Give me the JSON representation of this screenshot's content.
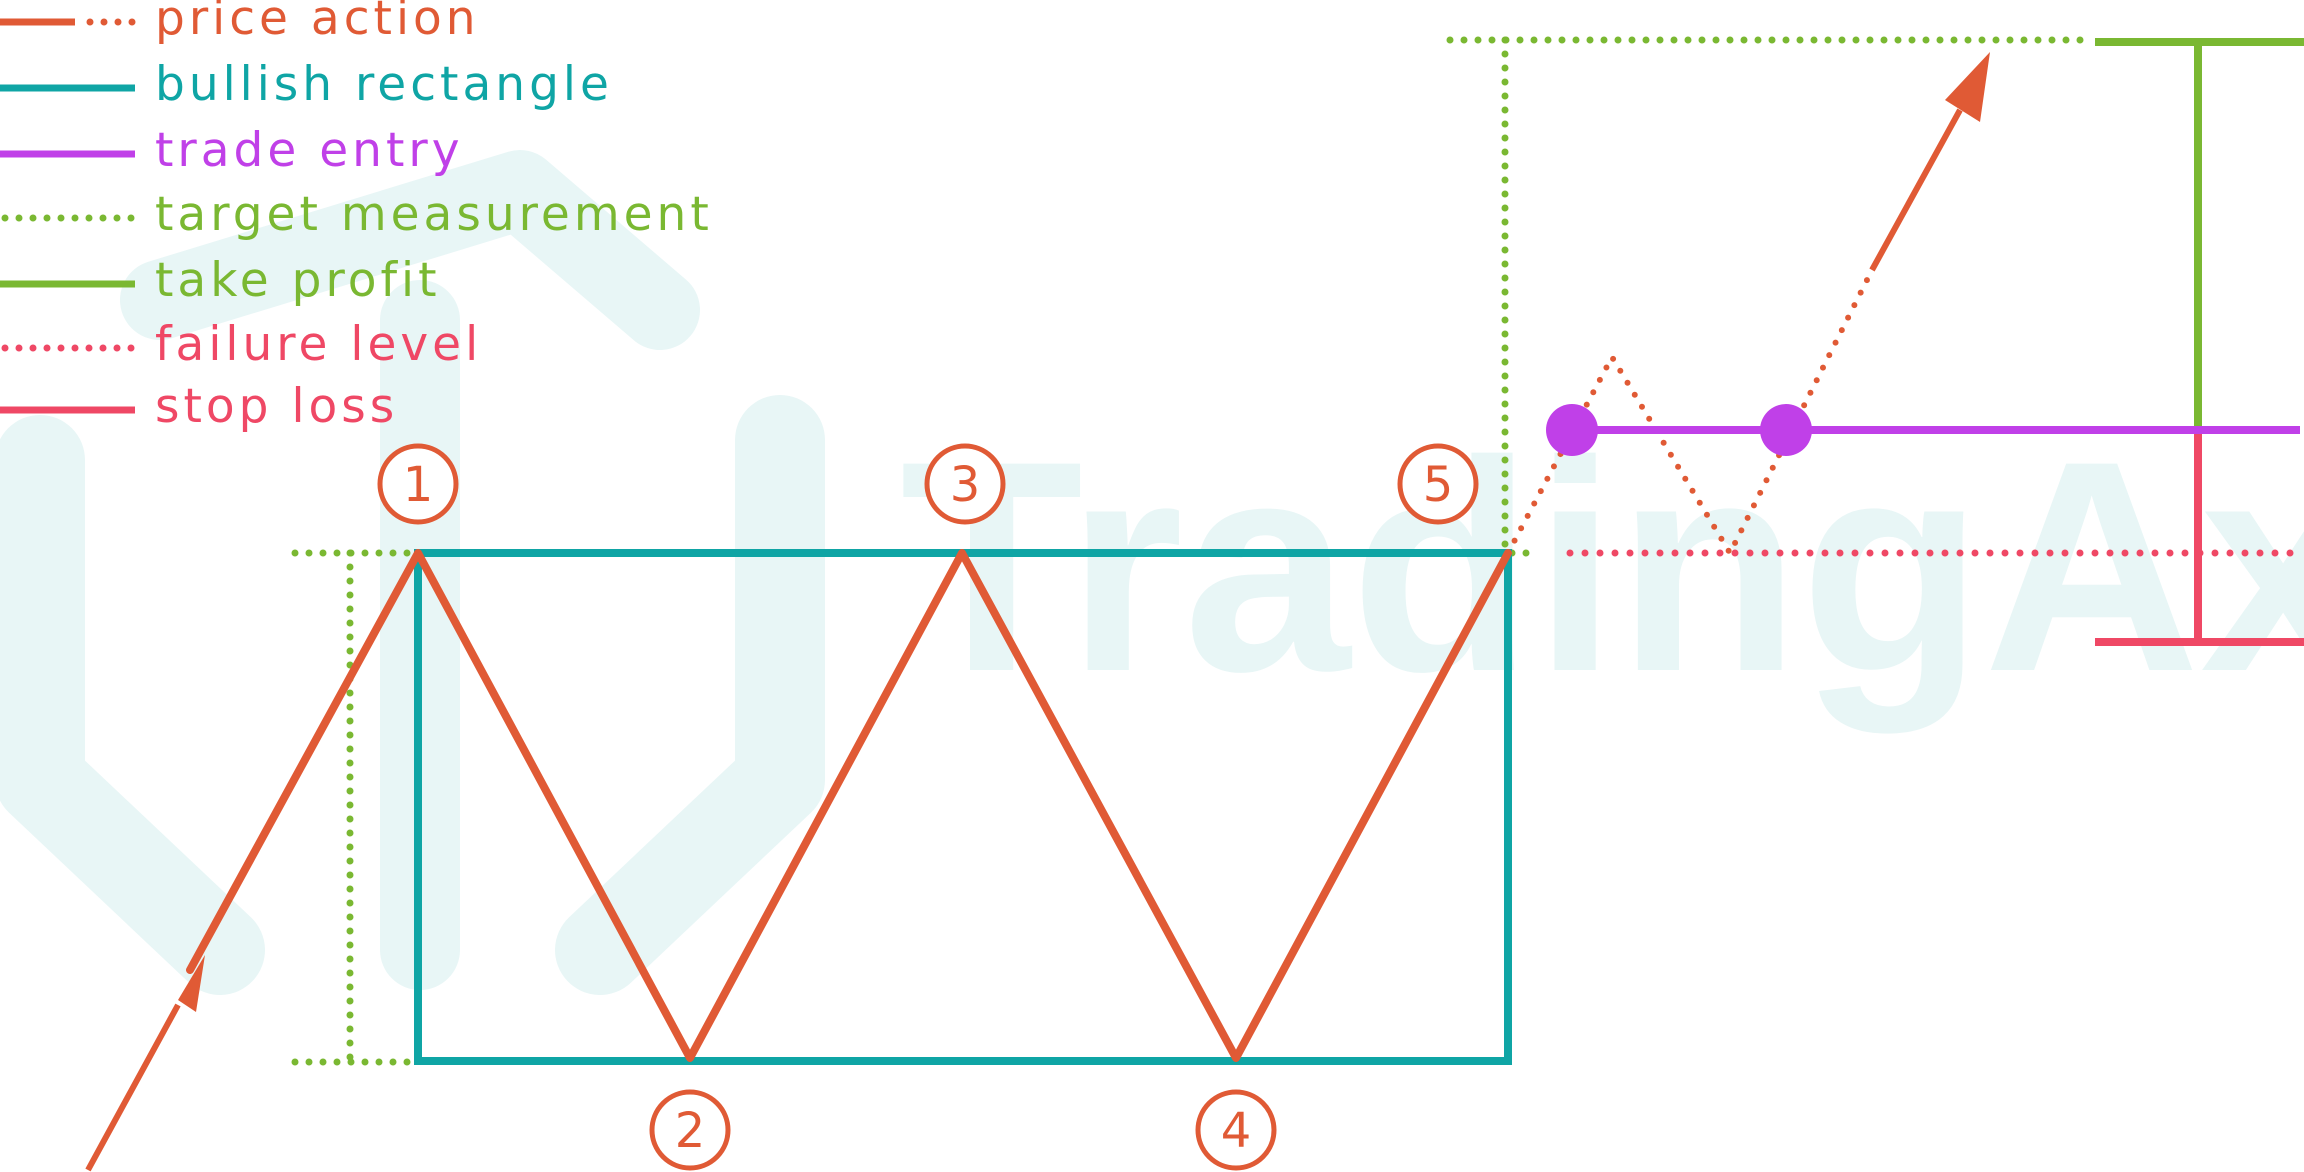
{
  "colors": {
    "price_action": "#e05a35",
    "bullish_rectangle": "#0fa5a5",
    "trade_entry": "#c040e8",
    "target_measurement": "#7ab832",
    "take_profit": "#7ab832",
    "failure_level": "#ef4865",
    "stop_loss": "#ef4865",
    "watermark": "#e8f6f6"
  },
  "legend": [
    {
      "key": "price_action",
      "label": "price action",
      "style": "solid-dotted",
      "color": "#e05a35"
    },
    {
      "key": "bullish_rectangle",
      "label": "bullish rectangle",
      "style": "solid",
      "color": "#0fa5a5"
    },
    {
      "key": "trade_entry",
      "label": "trade entry",
      "style": "solid",
      "color": "#c040e8"
    },
    {
      "key": "target_measurement",
      "label": "target measurement",
      "style": "dotted",
      "color": "#7ab832"
    },
    {
      "key": "take_profit",
      "label": "take profit",
      "style": "solid",
      "color": "#7ab832"
    },
    {
      "key": "failure_level",
      "label": "failure level",
      "style": "dotted",
      "color": "#ef4865"
    },
    {
      "key": "stop_loss",
      "label": "stop loss",
      "style": "solid",
      "color": "#ef4865"
    }
  ],
  "watermark": {
    "text": "TradingAxe"
  },
  "points": [
    {
      "label": "1"
    },
    {
      "label": "2"
    },
    {
      "label": "3"
    },
    {
      "label": "4"
    },
    {
      "label": "5"
    }
  ]
}
